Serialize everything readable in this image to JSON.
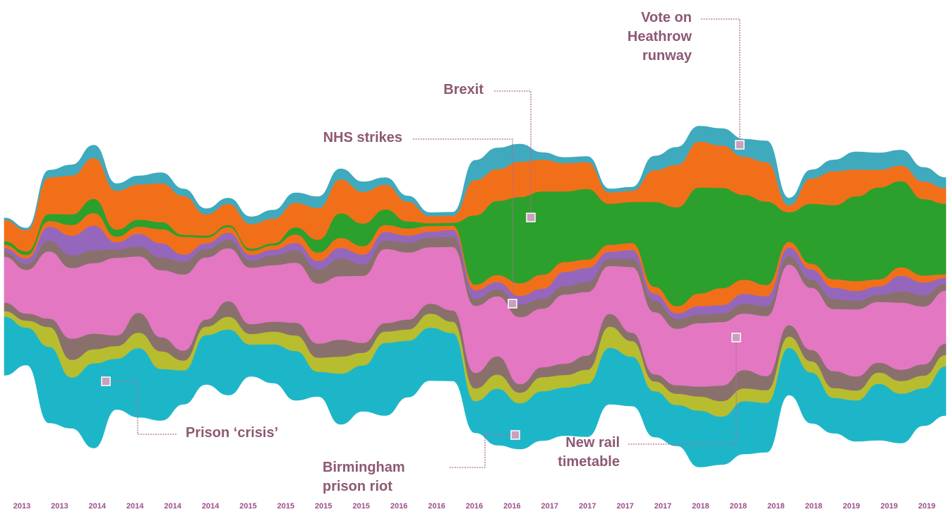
{
  "chart_data": {
    "type": "area",
    "layout": "streamgraph",
    "x_labels": [
      "2013",
      "2013",
      "2014",
      "2014",
      "2014",
      "2014",
      "2015",
      "2015",
      "2015",
      "2015",
      "2016",
      "2016",
      "2016",
      "2016",
      "2017",
      "2017",
      "2017",
      "2017",
      "2018",
      "2018",
      "2018",
      "2018",
      "2019",
      "2019",
      "2019"
    ],
    "series": [
      {
        "color": "#1db6c9",
        "values": [
          83,
          53,
          108,
          72,
          120,
          72,
          98,
          73,
          48,
          70,
          93,
          45,
          55,
          70,
          35,
          72,
          65,
          103,
          80,
          75,
          68,
          45,
          80,
          65,
          70,
          68,
          75,
          80,
          70,
          65,
          58,
          80,
          68,
          75,
          70,
          67,
          72,
          50,
          58,
          80,
          70,
          53,
          70
        ]
      },
      {
        "color": "#b7bd2e",
        "values": [
          8,
          10,
          28,
          25,
          20,
          18,
          22,
          25,
          14,
          12,
          18,
          15,
          18,
          22,
          20,
          24,
          18,
          16,
          16,
          20,
          16,
          18,
          20,
          15,
          20,
          18,
          20,
          30,
          22,
          14,
          16,
          20,
          22,
          18,
          18,
          16,
          16,
          14,
          14,
          16,
          18,
          18,
          16
        ]
      },
      {
        "color": "#8a706c",
        "values": [
          12,
          10,
          12,
          30,
          22,
          15,
          28,
          20,
          14,
          10,
          22,
          14,
          14,
          18,
          20,
          24,
          14,
          12,
          14,
          14,
          16,
          22,
          26,
          12,
          14,
          16,
          20,
          18,
          12,
          10,
          12,
          14,
          22,
          26,
          20,
          16,
          16,
          24,
          20,
          14,
          16,
          16,
          16
        ]
      },
      {
        "color": "#e377c2",
        "values": [
          65,
          62,
          95,
          100,
          100,
          110,
          80,
          95,
          108,
          88,
          75,
          80,
          80,
          85,
          85,
          90,
          95,
          105,
          95,
          80,
          90,
          95,
          85,
          95,
          83,
          98,
          90,
          68,
          93,
          88,
          80,
          90,
          90,
          80,
          85,
          86,
          88,
          88,
          95,
          86,
          95,
          82,
          75
        ]
      },
      {
        "color": "#8a706c",
        "values": [
          7,
          8,
          15,
          18,
          18,
          12,
          14,
          18,
          18,
          12,
          12,
          10,
          14,
          18,
          20,
          25,
          16,
          12,
          14,
          14,
          14,
          10,
          10,
          18,
          14,
          12,
          14,
          10,
          12,
          16,
          14,
          12,
          12,
          14,
          14,
          12,
          12,
          14,
          12,
          10,
          16,
          16,
          10
        ]
      },
      {
        "color": "#9467bd",
        "values": [
          5,
          8,
          20,
          28,
          35,
          10,
          18,
          20,
          10,
          8,
          10,
          8,
          8,
          10,
          12,
          15,
          14,
          12,
          10,
          8,
          10,
          12,
          10,
          12,
          14,
          20,
          20,
          10,
          12,
          10,
          8,
          12,
          12,
          14,
          14,
          12,
          14,
          16,
          14,
          12,
          22,
          18,
          8
        ]
      },
      {
        "color": "#f26f1a",
        "values": [
          5,
          5,
          8,
          15,
          18,
          8,
          10,
          20,
          25,
          8,
          8,
          6,
          6,
          12,
          12,
          14,
          12,
          10,
          10,
          8,
          6,
          8,
          10,
          18,
          20,
          14,
          12,
          10,
          10,
          10,
          10,
          18,
          24,
          20,
          16,
          8,
          8,
          12,
          14,
          10,
          12,
          10,
          5
        ]
      },
      {
        "color": "#2ca02c",
        "values": [
          5,
          5,
          10,
          15,
          20,
          10,
          10,
          10,
          3,
          3,
          3,
          3,
          3,
          10,
          18,
          35,
          32,
          22,
          10,
          4,
          4,
          98,
          105,
          122,
          118,
          100,
          100,
          58,
          58,
          120,
          140,
          150,
          142,
          120,
          118,
          42,
          85,
          105,
          120,
          130,
          122,
          108,
          100
        ]
      },
      {
        "color": "#f26f1a",
        "values": [
          30,
          30,
          52,
          55,
          58,
          55,
          50,
          55,
          55,
          30,
          30,
          35,
          35,
          35,
          45,
          48,
          45,
          35,
          28,
          10,
          10,
          50,
          45,
          50,
          45,
          40,
          38,
          16,
          16,
          45,
          60,
          65,
          60,
          54,
          56,
          10,
          36,
          48,
          38,
          25,
          22,
          25,
          22
        ]
      },
      {
        "color": "#3fa9bd",
        "values": [
          3,
          3,
          10,
          15,
          18,
          10,
          12,
          15,
          10,
          8,
          8,
          10,
          12,
          14,
          16,
          15,
          14,
          10,
          8,
          5,
          5,
          28,
          30,
          25,
          10,
          8,
          8,
          5,
          5,
          20,
          25,
          22,
          24,
          25,
          30,
          10,
          12,
          16,
          25,
          24,
          22,
          20,
          15
        ]
      }
    ],
    "annotations": [
      {
        "lines": [
          "Vote on",
          "Heathrow",
          "runway"
        ]
      },
      {
        "lines": [
          "Brexit"
        ]
      },
      {
        "lines": [
          "NHS strikes"
        ]
      },
      {
        "lines": [
          "Prison ‘crisis’"
        ]
      },
      {
        "lines": [
          "Birmingham",
          "prison riot"
        ]
      },
      {
        "lines": [
          "New rail",
          "timetable"
        ]
      }
    ]
  }
}
